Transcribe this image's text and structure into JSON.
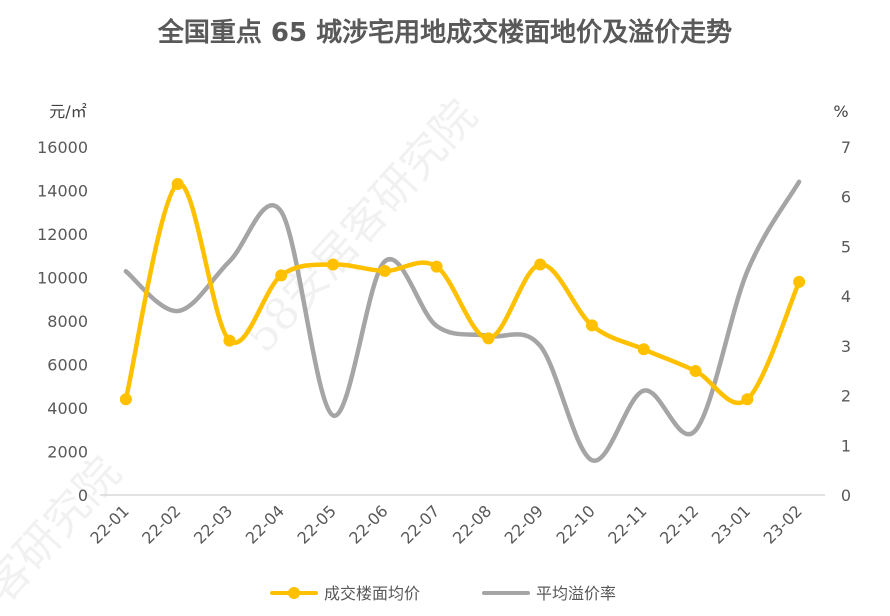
{
  "chart_data": {
    "type": "line",
    "title": "全国重点 65 城涉宅用地成交楼面地价及溢价走势",
    "y_left_unit": "元/㎡",
    "y_right_unit": "%",
    "categories": [
      "22-01",
      "22-02",
      "22-03",
      "22-04",
      "22-05",
      "22-06",
      "22-07",
      "22-08",
      "22-09",
      "22-10",
      "22-11",
      "22-12",
      "23-01",
      "23-02"
    ],
    "y_left_ticks": [
      "0",
      "2000",
      "4000",
      "6000",
      "8000",
      "10000",
      "12000",
      "14000",
      "16000"
    ],
    "y_right_ticks": [
      "0",
      "1",
      "2",
      "3",
      "4",
      "5",
      "6",
      "7"
    ],
    "ylim_left": [
      0,
      16000
    ],
    "ylim_right": [
      0,
      7
    ],
    "grid": false,
    "legend_position": "bottom",
    "series": [
      {
        "name": "成交楼面均价",
        "axis": "left",
        "color": "#FFC000",
        "marker": "circle",
        "values": [
          4400,
          14300,
          7100,
          10100,
          10600,
          10300,
          10500,
          7200,
          10600,
          7800,
          6700,
          5700,
          4400,
          9800
        ]
      },
      {
        "name": "平均溢价率",
        "axis": "right",
        "color": "#A5A5A5",
        "marker": "none",
        "values": [
          4.5,
          3.7,
          4.7,
          5.7,
          1.6,
          4.7,
          3.4,
          3.2,
          3.0,
          0.7,
          2.1,
          1.3,
          4.5,
          6.3
        ]
      }
    ]
  },
  "watermark": {
    "text_main": "58安居客研究院",
    "text_left": "客研究院"
  }
}
